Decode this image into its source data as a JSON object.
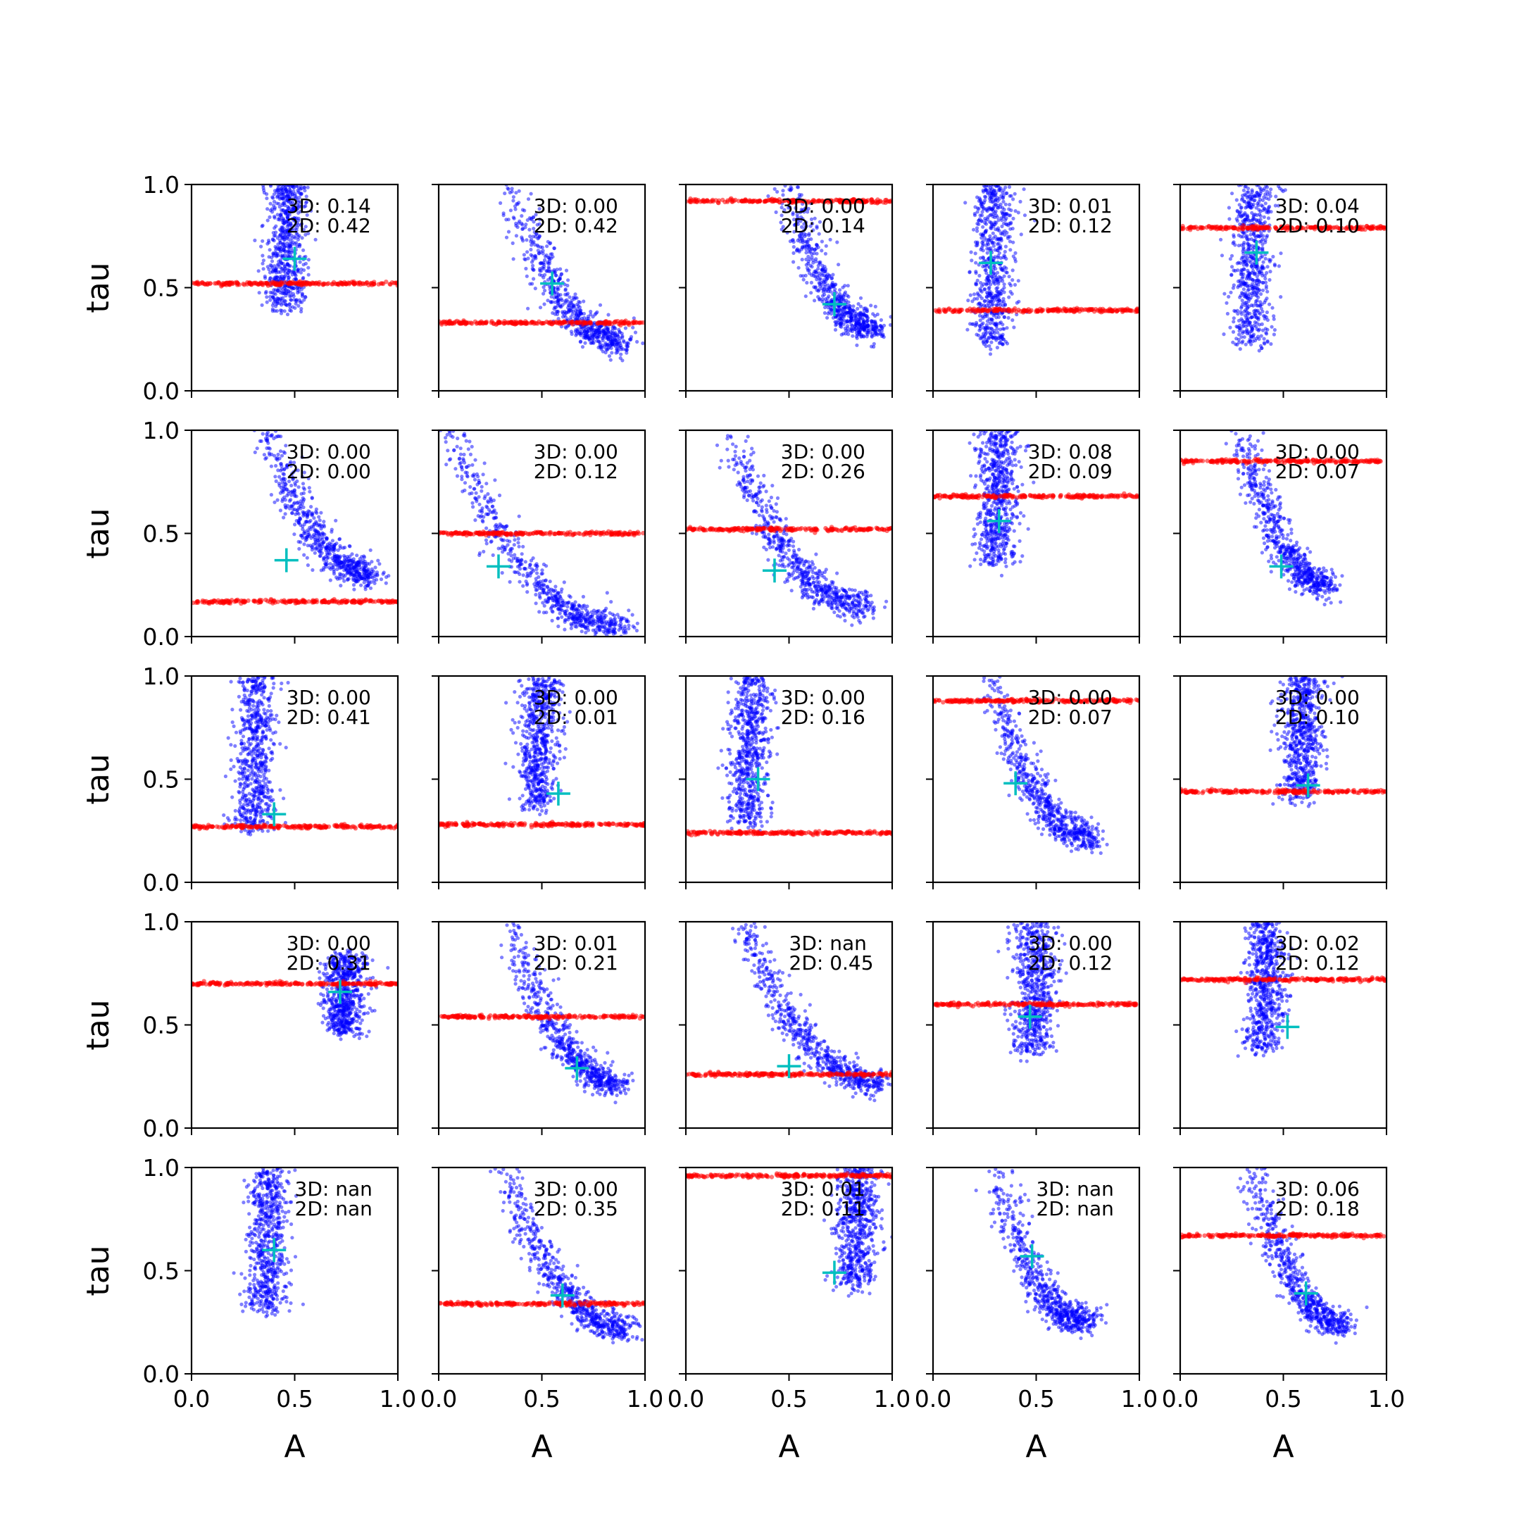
{
  "chart_data": {
    "type": "scatter",
    "grid": false,
    "layout": {
      "rows": 5,
      "cols": 5
    },
    "xlabel": "A",
    "ylabel": "tau",
    "xlim": [
      0,
      1
    ],
    "ylim": [
      0,
      1
    ],
    "xticks": [
      "0.0",
      "0.5",
      "1.0"
    ],
    "yticks": [
      "0.0",
      "0.5",
      "1.0"
    ],
    "series_colors": {
      "samples": "#0000ff",
      "tau_band": "#ff0000",
      "marker": "#00bfbf"
    },
    "panels": [
      {
        "row": 0,
        "col": 0,
        "annot_3d": "3D: 0.14",
        "annot_2d": "2D: 0.42",
        "red_tau": 0.52,
        "marker": [
          0.5,
          0.64
        ],
        "blue": {
          "shape": "vertical",
          "cx": 0.45,
          "y_top": 1.0,
          "y_bottom": 0.4
        }
      },
      {
        "row": 0,
        "col": 1,
        "annot_3d": "3D: 0.00",
        "annot_2d": "2D: 0.42",
        "red_tau": 0.33,
        "marker": [
          0.55,
          0.52
        ],
        "blue": {
          "shape": "curve",
          "x_start": 0.35,
          "x_end": 0.9,
          "y_top": 1.0,
          "y_bottom": 0.24
        }
      },
      {
        "row": 0,
        "col": 2,
        "annot_3d": "3D: 0.00",
        "annot_2d": "2D: 0.14",
        "red_tau": 0.92,
        "marker": [
          0.72,
          0.42
        ],
        "blue": {
          "shape": "curve",
          "x_start": 0.5,
          "x_end": 0.92,
          "y_top": 1.0,
          "y_bottom": 0.3
        }
      },
      {
        "row": 0,
        "col": 3,
        "annot_3d": "3D: 0.01",
        "annot_2d": "2D: 0.12",
        "red_tau": 0.39,
        "marker": [
          0.28,
          0.62
        ],
        "blue": {
          "shape": "vertical",
          "cx": 0.28,
          "y_top": 1.0,
          "y_bottom": 0.22
        }
      },
      {
        "row": 0,
        "col": 4,
        "annot_3d": "3D: 0.04",
        "annot_2d": "2D: 0.10",
        "red_tau": 0.79,
        "marker": [
          0.37,
          0.67
        ],
        "blue": {
          "shape": "vertical",
          "cx": 0.34,
          "y_top": 1.0,
          "y_bottom": 0.22
        }
      },
      {
        "row": 1,
        "col": 0,
        "annot_3d": "3D: 0.00",
        "annot_2d": "2D: 0.00",
        "red_tau": 0.17,
        "marker": [
          0.46,
          0.37
        ],
        "blue": {
          "shape": "curve",
          "x_start": 0.38,
          "x_end": 0.88,
          "y_top": 1.0,
          "y_bottom": 0.3
        }
      },
      {
        "row": 1,
        "col": 1,
        "annot_3d": "3D: 0.00",
        "annot_2d": "2D: 0.12",
        "red_tau": 0.5,
        "marker": [
          0.29,
          0.34
        ],
        "blue": {
          "shape": "curve",
          "x_start": 0.05,
          "x_end": 0.9,
          "y_top": 1.0,
          "y_bottom": 0.05
        }
      },
      {
        "row": 1,
        "col": 2,
        "annot_3d": "3D: 0.00",
        "annot_2d": "2D: 0.26",
        "red_tau": 0.52,
        "marker": [
          0.43,
          0.32
        ],
        "blue": {
          "shape": "curve",
          "x_start": 0.22,
          "x_end": 0.88,
          "y_top": 0.95,
          "y_bottom": 0.15
        }
      },
      {
        "row": 1,
        "col": 3,
        "annot_3d": "3D: 0.08",
        "annot_2d": "2D: 0.09",
        "red_tau": 0.68,
        "marker": [
          0.32,
          0.56
        ],
        "blue": {
          "shape": "vertical",
          "cx": 0.3,
          "y_top": 1.0,
          "y_bottom": 0.35
        }
      },
      {
        "row": 1,
        "col": 4,
        "annot_3d": "3D: 0.00",
        "annot_2d": "2D: 0.07",
        "red_tau": 0.85,
        "marker": [
          0.49,
          0.34
        ],
        "blue": {
          "shape": "curve",
          "x_start": 0.3,
          "x_end": 0.72,
          "y_top": 1.0,
          "y_bottom": 0.25
        }
      },
      {
        "row": 2,
        "col": 0,
        "annot_3d": "3D: 0.00",
        "annot_2d": "2D: 0.41",
        "red_tau": 0.27,
        "marker": [
          0.4,
          0.33
        ],
        "blue": {
          "shape": "vertical",
          "cx": 0.3,
          "y_top": 1.0,
          "y_bottom": 0.25
        }
      },
      {
        "row": 2,
        "col": 1,
        "annot_3d": "3D: 0.00",
        "annot_2d": "2D: 0.01",
        "red_tau": 0.28,
        "marker": [
          0.58,
          0.43
        ],
        "blue": {
          "shape": "vertical",
          "cx": 0.48,
          "y_top": 1.0,
          "y_bottom": 0.36
        }
      },
      {
        "row": 2,
        "col": 2,
        "annot_3d": "3D: 0.00",
        "annot_2d": "2D: 0.16",
        "red_tau": 0.24,
        "marker": [
          0.35,
          0.5
        ],
        "blue": {
          "shape": "vertical",
          "cx": 0.3,
          "y_top": 1.0,
          "y_bottom": 0.28
        }
      },
      {
        "row": 2,
        "col": 3,
        "annot_3d": "3D: 0.00",
        "annot_2d": "2D: 0.07",
        "red_tau": 0.88,
        "marker": [
          0.4,
          0.48
        ],
        "blue": {
          "shape": "curve",
          "x_start": 0.28,
          "x_end": 0.78,
          "y_top": 1.0,
          "y_bottom": 0.22
        }
      },
      {
        "row": 2,
        "col": 4,
        "annot_3d": "3D: 0.00",
        "annot_2d": "2D: 0.10",
        "red_tau": 0.44,
        "marker": [
          0.62,
          0.47
        ],
        "blue": {
          "shape": "vertical",
          "cx": 0.58,
          "y_top": 1.0,
          "y_bottom": 0.4
        }
      },
      {
        "row": 3,
        "col": 0,
        "annot_3d": "3D: 0.00",
        "annot_2d": "2D: 0.31",
        "red_tau": 0.7,
        "marker": [
          0.72,
          0.66
        ],
        "blue": {
          "shape": "vertical",
          "cx": 0.73,
          "y_top": 0.84,
          "y_bottom": 0.46
        }
      },
      {
        "row": 3,
        "col": 1,
        "annot_3d": "3D: 0.01",
        "annot_2d": "2D: 0.21",
        "red_tau": 0.54,
        "marker": [
          0.67,
          0.29
        ],
        "blue": {
          "shape": "curve",
          "x_start": 0.35,
          "x_end": 0.88,
          "y_top": 1.0,
          "y_bottom": 0.22
        }
      },
      {
        "row": 3,
        "col": 2,
        "annot_3d": "3D: nan",
        "annot_2d": "2D: 0.45",
        "red_tau": 0.26,
        "marker": [
          0.5,
          0.3
        ],
        "blue": {
          "shape": "curve",
          "x_start": 0.28,
          "x_end": 0.95,
          "y_top": 1.0,
          "y_bottom": 0.22
        }
      },
      {
        "row": 3,
        "col": 3,
        "annot_3d": "3D: 0.00",
        "annot_2d": "2D: 0.12",
        "red_tau": 0.6,
        "marker": [
          0.47,
          0.54
        ],
        "blue": {
          "shape": "vertical",
          "cx": 0.48,
          "y_top": 1.0,
          "y_bottom": 0.36
        }
      },
      {
        "row": 3,
        "col": 4,
        "annot_3d": "3D: 0.02",
        "annot_2d": "2D: 0.12",
        "red_tau": 0.72,
        "marker": [
          0.52,
          0.49
        ],
        "blue": {
          "shape": "vertical",
          "cx": 0.4,
          "y_top": 1.0,
          "y_bottom": 0.38
        }
      },
      {
        "row": 4,
        "col": 0,
        "annot_3d": "3D: nan",
        "annot_2d": "2D: nan",
        "red_tau": null,
        "marker": [
          0.4,
          0.6
        ],
        "blue": {
          "shape": "vertical",
          "cx": 0.36,
          "y_top": 1.0,
          "y_bottom": 0.3
        }
      },
      {
        "row": 4,
        "col": 1,
        "annot_3d": "3D: 0.00",
        "annot_2d": "2D: 0.35",
        "red_tau": 0.34,
        "marker": [
          0.6,
          0.38
        ],
        "blue": {
          "shape": "curve",
          "x_start": 0.32,
          "x_end": 0.92,
          "y_top": 1.0,
          "y_bottom": 0.22
        }
      },
      {
        "row": 4,
        "col": 2,
        "annot_3d": "3D: 0.01",
        "annot_2d": "2D: 0.11",
        "red_tau": 0.96,
        "marker": [
          0.72,
          0.49
        ],
        "blue": {
          "shape": "vertical",
          "cx": 0.82,
          "y_top": 1.0,
          "y_bottom": 0.42
        }
      },
      {
        "row": 4,
        "col": 3,
        "annot_3d": "3D: nan",
        "annot_2d": "2D: nan",
        "red_tau": null,
        "marker": [
          0.48,
          0.57
        ],
        "blue": {
          "shape": "curve",
          "x_start": 0.3,
          "x_end": 0.75,
          "y_top": 1.0,
          "y_bottom": 0.25
        }
      },
      {
        "row": 4,
        "col": 4,
        "annot_3d": "3D: 0.06",
        "annot_2d": "2D: 0.18",
        "red_tau": 0.67,
        "marker": [
          0.61,
          0.39
        ],
        "blue": {
          "shape": "curve",
          "x_start": 0.35,
          "x_end": 0.8,
          "y_top": 1.0,
          "y_bottom": 0.24
        }
      }
    ]
  }
}
